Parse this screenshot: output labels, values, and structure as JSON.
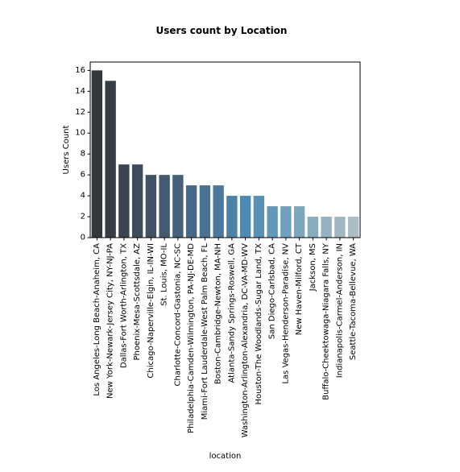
{
  "chart_data": {
    "type": "bar",
    "title": "Users count by Location",
    "xlabel": "location",
    "ylabel": "Users Count",
    "ylim": [
      0,
      16.8
    ],
    "yticks": [
      0,
      2,
      4,
      6,
      8,
      10,
      12,
      14,
      16
    ],
    "grid": false,
    "legend": "none",
    "categories": [
      "Los Angeles-Long Beach-Anaheim, CA",
      "New York-Newark-Jersey City, NY-NJ-PA",
      "Dallas-Fort Worth-Arlington, TX",
      "Phoenix-Mesa-Scottsdale, AZ",
      "Chicago-Naperville-Elgin, IL-IN-WI",
      "St. Louis, MO-IL",
      "Charlotte-Concord-Gastonia, NC-SC",
      "Philadelphia-Camden-Wilmington, PA-NJ-DE-MD",
      "Miami-Fort Lauderdale-West Palm Beach, FL",
      "Boston-Cambridge-Newton, MA-NH",
      "Atlanta-Sandy Springs-Roswell, GA",
      "Washington-Arlington-Alexandria, DC-VA-MD-WV",
      "Houston-The Woodlands-Sugar Land, TX",
      "San Diego-Carlsbad, CA",
      "Las Vegas-Henderson-Paradise, NV",
      "New Haven-Milford, CT",
      "Jackson, MS",
      "Buffalo-Cheektowaga-Niagara Falls, NY",
      "Indianapolis-Carmel-Anderson, IN",
      "Seattle-Tacoma-Bellevue, WA"
    ],
    "values": [
      16,
      15,
      7,
      7,
      6,
      6,
      6,
      5,
      5,
      5,
      4,
      4,
      4,
      3,
      3,
      3,
      2,
      2,
      2,
      2
    ],
    "colors": [
      "#32373c",
      "#363d45",
      "#3a4450",
      "#3d4b5a",
      "#405265",
      "#435a71",
      "#45617c",
      "#476987",
      "#497192",
      "#4b799d",
      "#4d81a8",
      "#4f88b1",
      "#5890b6",
      "#6398ba",
      "#6fa0bd",
      "#7ba7bf",
      "#87adc0",
      "#94b2c1",
      "#a0b7c2",
      "#acbdc4"
    ]
  }
}
